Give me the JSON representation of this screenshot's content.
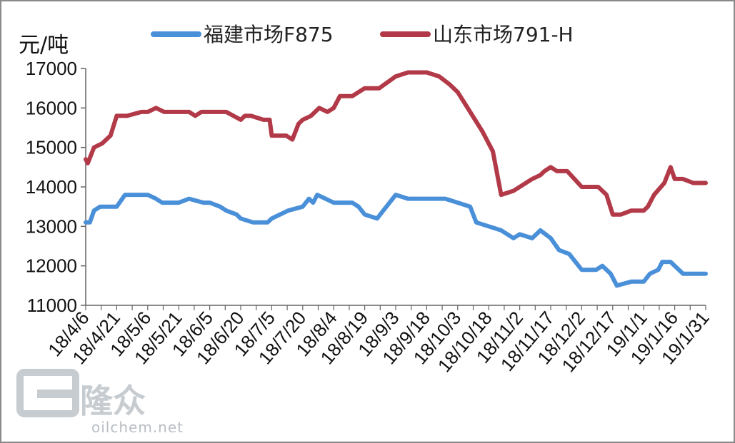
{
  "chart_data": {
    "type": "line",
    "ylabel": "元/吨",
    "ylim": [
      11000,
      17000
    ],
    "yticks": [
      "11000",
      "12000",
      "13000",
      "14000",
      "15000",
      "16000",
      "17000"
    ],
    "xticks": [
      "18/4/6",
      "18/4/21",
      "18/5/6",
      "18/5/21",
      "18/6/5",
      "18/6/20",
      "18/7/5",
      "18/7/20",
      "18/8/4",
      "18/8/19",
      "18/9/3",
      "18/9/18",
      "18/10/3",
      "18/10/18",
      "18/11/2",
      "18/11/17",
      "18/12/2",
      "18/12/17",
      "19/1/1",
      "19/1/16",
      "19/1/31"
    ],
    "legend_position": "top",
    "grid": false,
    "series": [
      {
        "name": "福建市场F875",
        "color": "#4a90d9",
        "x": [
          "18/4/6",
          "18/4/8",
          "18/4/10",
          "18/4/13",
          "18/4/21",
          "18/4/25",
          "18/5/6",
          "18/5/10",
          "18/5/13",
          "18/5/21",
          "18/5/26",
          "18/6/2",
          "18/6/5",
          "18/6/10",
          "18/6/13",
          "18/6/18",
          "18/6/20",
          "18/6/26",
          "18/7/3",
          "18/7/5",
          "18/7/13",
          "18/7/20",
          "18/7/23",
          "18/7/25",
          "18/7/27",
          "18/8/4",
          "18/8/13",
          "18/8/16",
          "18/8/19",
          "18/8/25",
          "18/8/28",
          "18/9/3",
          "18/9/9",
          "18/9/18",
          "18/9/27",
          "18/10/3",
          "18/10/9",
          "18/10/12",
          "18/10/18",
          "18/10/24",
          "18/10/30",
          "18/11/2",
          "18/11/8",
          "18/11/12",
          "18/11/17",
          "18/11/21",
          "18/11/26",
          "18/12/2",
          "18/12/9",
          "18/12/12",
          "18/12/16",
          "18/12/17",
          "18/12/19",
          "18/12/26",
          "19/1/1",
          "19/1/4",
          "19/1/8",
          "19/1/10",
          "19/1/14",
          "19/1/16",
          "19/1/20",
          "19/1/25",
          "19/1/31"
        ],
        "values": [
          13100,
          13100,
          13400,
          13500,
          13500,
          13800,
          13800,
          13700,
          13600,
          13600,
          13700,
          13600,
          13600,
          13500,
          13400,
          13300,
          13200,
          13100,
          13100,
          13200,
          13400,
          13500,
          13700,
          13600,
          13800,
          13600,
          13600,
          13500,
          13300,
          13200,
          13400,
          13800,
          13700,
          13700,
          13700,
          13600,
          13500,
          13100,
          13000,
          12900,
          12700,
          12800,
          12700,
          12900,
          12700,
          12400,
          12300,
          11900,
          11900,
          12000,
          11800,
          11700,
          11500,
          11600,
          11600,
          11800,
          11900,
          12100,
          12100,
          12000,
          11800,
          11800,
          11800
        ]
      },
      {
        "name": "山东市场791-H",
        "color": "#b23a48",
        "x": [
          "18/4/6",
          "18/4/7",
          "18/4/10",
          "18/4/14",
          "18/4/18",
          "18/4/21",
          "18/4/26",
          "18/5/3",
          "18/5/6",
          "18/5/10",
          "18/5/14",
          "18/5/18",
          "18/5/21",
          "18/5/26",
          "18/5/29",
          "18/6/1",
          "18/6/5",
          "18/6/13",
          "18/6/20",
          "18/6/22",
          "18/6/25",
          "18/7/1",
          "18/7/4",
          "18/7/5",
          "18/7/12",
          "18/7/15",
          "18/7/18",
          "18/7/20",
          "18/7/24",
          "18/7/28",
          "18/8/1",
          "18/8/4",
          "18/8/7",
          "18/8/13",
          "18/8/19",
          "18/8/26",
          "18/9/3",
          "18/9/9",
          "18/9/13",
          "18/9/18",
          "18/9/24",
          "18/9/29",
          "18/10/3",
          "18/10/9",
          "18/10/15",
          "18/10/20",
          "18/10/24",
          "18/10/30",
          "18/11/2",
          "18/11/8",
          "18/11/12",
          "18/11/14",
          "18/11/17",
          "18/11/20",
          "18/11/25",
          "18/12/2",
          "18/12/10",
          "18/12/14",
          "18/12/17",
          "18/12/21",
          "18/12/26",
          "19/1/1",
          "19/1/3",
          "19/1/6",
          "19/1/11",
          "19/1/14",
          "19/1/16",
          "19/1/20",
          "19/1/25",
          "19/1/31"
        ],
        "values": [
          14700,
          14600,
          15000,
          15100,
          15300,
          15800,
          15800,
          15900,
          15900,
          16000,
          15900,
          15900,
          15900,
          15900,
          15800,
          15900,
          15900,
          15900,
          15700,
          15800,
          15800,
          15700,
          15700,
          15300,
          15300,
          15200,
          15600,
          15700,
          15800,
          16000,
          15900,
          16000,
          16300,
          16300,
          16500,
          16500,
          16800,
          16900,
          16900,
          16900,
          16800,
          16600,
          16400,
          15900,
          15400,
          14900,
          13800,
          13900,
          14000,
          14200,
          14300,
          14400,
          14500,
          14400,
          14400,
          14000,
          14000,
          13800,
          13300,
          13300,
          13400,
          13400,
          13500,
          13800,
          14100,
          14500,
          14200,
          14200,
          14100,
          14100
        ]
      }
    ]
  },
  "watermark": {
    "cn": "隆众",
    "site": "oilchem.net"
  }
}
